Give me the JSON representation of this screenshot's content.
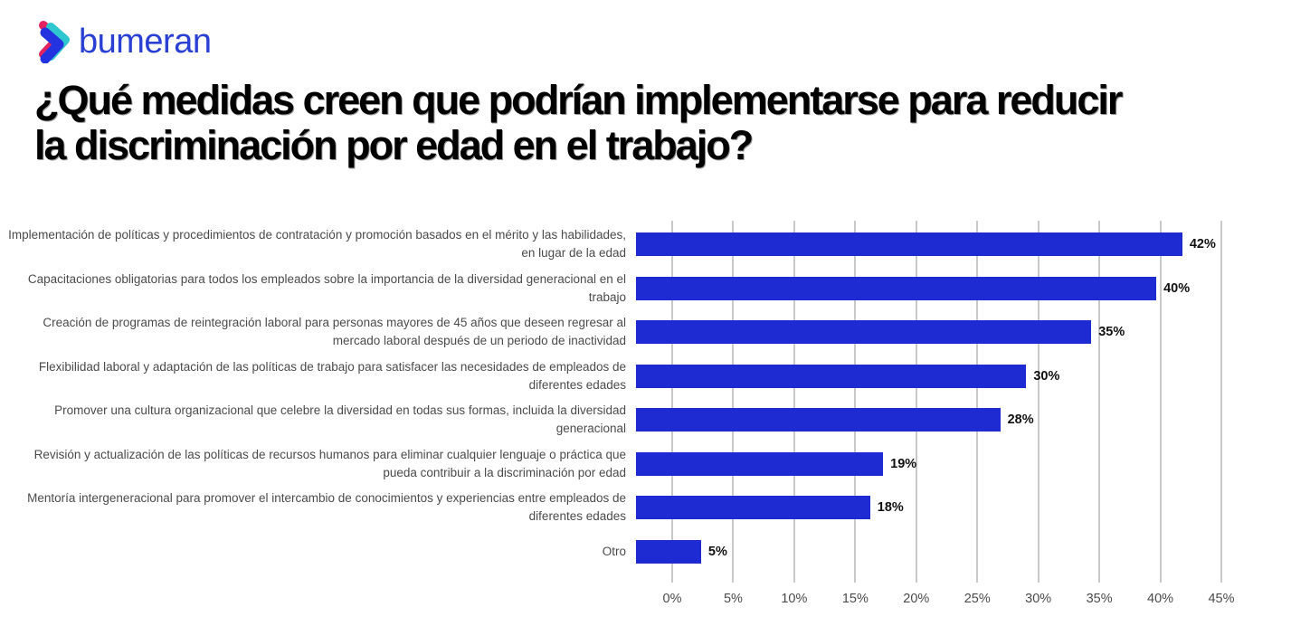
{
  "logo": {
    "text": "bumeran",
    "icon": "bumeran-chevron-icon",
    "icon_colors": {
      "teal": "#2ec6cf",
      "crimson": "#e22360",
      "blue": "#2a3fd4"
    }
  },
  "title": {
    "line1": "¿Qué medidas creen que podrían implementarse para reducir",
    "line2": "la discriminación por edad en el trabajo?"
  },
  "chart_data": {
    "type": "bar",
    "orientation": "horizontal",
    "title": "¿Qué medidas creen que podrían implementarse para reducir la discriminación por edad en el trabajo?",
    "categories": [
      "Implementación de políticas y procedimientos de contratación y promoción basados en el mérito y las habilidades, en lugar de la edad",
      "Capacitaciones obligatorias para todos los empleados sobre la importancia de la diversidad generacional en el trabajo",
      "Creación de programas de reintegración laboral para personas mayores de 45 años que deseen regresar al mercado laboral después de un periodo de inactividad",
      "Flexibilidad laboral y adaptación de las políticas de trabajo para satisfacer las necesidades de empleados de diferentes edades",
      "Promover una cultura organizacional que celebre la diversidad en todas sus formas, incluida la diversidad generacional",
      "Revisión y actualización de las políticas de recursos humanos para eliminar cualquier lenguaje o práctica que pueda contribuir a la discriminación por edad",
      "Mentoría intergeneracional para promover el intercambio de conocimientos y experiencias entre empleados de diferentes edades",
      "Otro"
    ],
    "values": [
      42,
      40,
      35,
      30,
      28,
      19,
      18,
      5
    ],
    "value_labels": [
      "42%",
      "40%",
      "35%",
      "30%",
      "28%",
      "19%",
      "18%",
      "5%"
    ],
    "xlabel": "",
    "ylabel": "",
    "xlim": [
      0,
      45
    ],
    "x_ticks": [
      "0%",
      "5%",
      "10%",
      "15%",
      "20%",
      "25%",
      "30%",
      "35%",
      "40%",
      "45%"
    ],
    "bar_color": "#1e2ad2",
    "grid": true,
    "gridline_color": "#c9c9c9",
    "legend": false
  }
}
